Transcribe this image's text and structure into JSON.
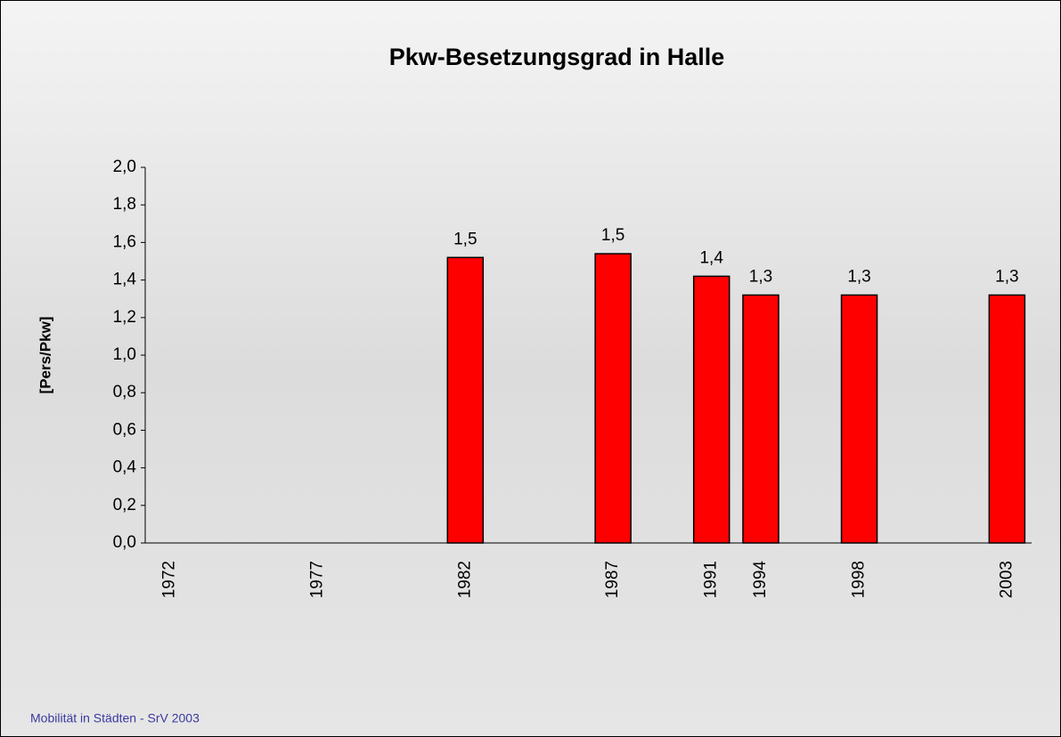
{
  "chart_data": {
    "type": "bar",
    "title": "Pkw-Besetzungsgrad in Halle",
    "y_label": "[Pers/Pkw]",
    "categories": [
      "1972",
      null,
      null,
      "1977",
      null,
      null,
      "1982",
      null,
      null,
      "1987",
      null,
      "1991",
      "1994",
      null,
      "1998",
      null,
      null,
      "2003"
    ],
    "values": [
      null,
      null,
      null,
      null,
      null,
      null,
      1.52,
      null,
      null,
      1.54,
      null,
      1.42,
      1.32,
      null,
      1.32,
      null,
      null,
      1.32
    ],
    "value_labels": [
      null,
      null,
      null,
      null,
      null,
      null,
      "1,5",
      null,
      null,
      "1,5",
      null,
      "1,4",
      "1,3",
      null,
      "1,3",
      null,
      null,
      "1,3"
    ],
    "color": "#ff0000",
    "ylim": [
      0,
      2
    ],
    "yticks": [
      {
        "value": 0,
        "label": "0,0"
      },
      {
        "value": 0.2,
        "label": "0,2"
      },
      {
        "value": 0.4,
        "label": "0,4"
      },
      {
        "value": 0.6,
        "label": "0,6"
      },
      {
        "value": 0.8,
        "label": "0,8"
      },
      {
        "value": 1,
        "label": "1,0"
      },
      {
        "value": 1.2,
        "label": "1,2"
      },
      {
        "value": 1.4,
        "label": "1,4"
      },
      {
        "value": 1.6,
        "label": "1,6"
      },
      {
        "value": 1.8,
        "label": "1,8"
      },
      {
        "value": 2,
        "label": "2,0"
      }
    ],
    "grid": false
  },
  "footer": "Mobilität in Städten - SrV 2003"
}
